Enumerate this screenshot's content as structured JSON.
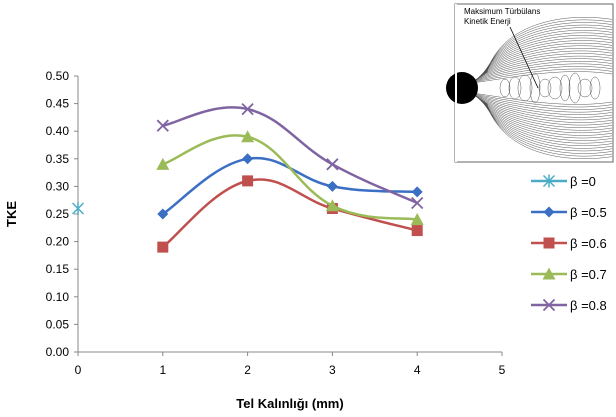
{
  "chart_data": {
    "type": "line",
    "xlabel": "Tel Kalınlığı (mm)",
    "ylabel": "TKE",
    "xlim": [
      0,
      5
    ],
    "ylim": [
      0,
      0.5
    ],
    "xticks": [
      0,
      1,
      2,
      3,
      4,
      5
    ],
    "yticks": [
      0.0,
      0.05,
      0.1,
      0.15,
      0.2,
      0.25,
      0.3,
      0.35,
      0.4,
      0.45,
      0.5
    ],
    "grid": false,
    "legend_position": "right",
    "series": [
      {
        "name": "β =0",
        "color": "#4bacc6",
        "marker": "asterisk",
        "points": [
          [
            0,
            0.26
          ]
        ]
      },
      {
        "name": "β =0.5",
        "color": "#3a6fc4",
        "marker": "diamond",
        "points": [
          [
            1,
            0.25
          ],
          [
            2,
            0.35
          ],
          [
            3,
            0.3
          ],
          [
            4,
            0.29
          ]
        ]
      },
      {
        "name": "β =0.6",
        "color": "#c0504d",
        "marker": "square",
        "points": [
          [
            1,
            0.19
          ],
          [
            2,
            0.31
          ],
          [
            3,
            0.26
          ],
          [
            4,
            0.22
          ]
        ]
      },
      {
        "name": "β =0.7",
        "color": "#9bbb59",
        "marker": "triangle",
        "points": [
          [
            1,
            0.34
          ],
          [
            2,
            0.39
          ],
          [
            3,
            0.265
          ],
          [
            4,
            0.24
          ]
        ]
      },
      {
        "name": "β =0.8",
        "color": "#8064a2",
        "marker": "x",
        "points": [
          [
            1,
            0.41
          ],
          [
            2,
            0.44
          ],
          [
            3,
            0.34
          ],
          [
            4,
            0.27
          ]
        ]
      }
    ]
  },
  "inset": {
    "caption_line1": "Maksimum Türbülans",
    "caption_line2": "Kinetik Enerji"
  }
}
